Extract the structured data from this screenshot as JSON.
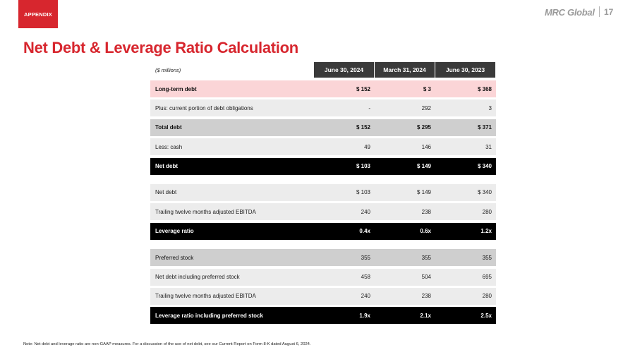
{
  "header": {
    "tag": "APPENDIX",
    "brand": "MRC Global",
    "page_number": "17",
    "title": "Net Debt & Leverage Ratio Calculation"
  },
  "table": {
    "units": "($ millions)",
    "columns": [
      "June 30, 2024",
      "March 31, 2024",
      "June 30, 2023"
    ],
    "section1": [
      {
        "label": "Long-term debt",
        "values": [
          "$ 152",
          "$ 3",
          "$ 368"
        ]
      },
      {
        "label": "Plus: current portion of debt obligations",
        "values": [
          "-",
          "292",
          "3"
        ]
      },
      {
        "label": "Total debt",
        "values": [
          "$ 152",
          "$ 295",
          "$ 371"
        ]
      },
      {
        "label": "Less: cash",
        "values": [
          "49",
          "146",
          "31"
        ]
      },
      {
        "label": "Net debt",
        "values": [
          "$ 103",
          "$ 149",
          "$ 340"
        ]
      }
    ],
    "section2": [
      {
        "label": "Net debt",
        "values": [
          "$ 103",
          "$ 149",
          "$ 340"
        ]
      },
      {
        "label": "Trailing twelve months adjusted EBITDA",
        "values": [
          "240",
          "238",
          "280"
        ]
      },
      {
        "label": "Leverage ratio",
        "values": [
          "0.4x",
          "0.6x",
          "1.2x"
        ]
      }
    ],
    "section3": [
      {
        "label": "Preferred stock",
        "values": [
          "355",
          "355",
          "355"
        ]
      },
      {
        "label": "Net debt including preferred stock",
        "values": [
          "458",
          "504",
          "695"
        ]
      },
      {
        "label": "Trailing twelve months adjusted EBITDA",
        "values": [
          "240",
          "238",
          "280"
        ]
      },
      {
        "label": "Leverage ratio including preferred stock",
        "values": [
          "1.9x",
          "2.1x",
          "2.5x"
        ]
      }
    ]
  },
  "note": "Note: Net debt and leverage ratio are non-GAAP measures. For a discussion of the use of net debt, see our Current Report on Form 8-K dated August 6, 2024.",
  "colors": {
    "accent": "#d7262e",
    "header_bg": "#3a3a3a",
    "pink_row": "#fbd5d7",
    "light_row": "#ececec",
    "mid_row": "#cfcfcf",
    "total_row": "#000000"
  }
}
